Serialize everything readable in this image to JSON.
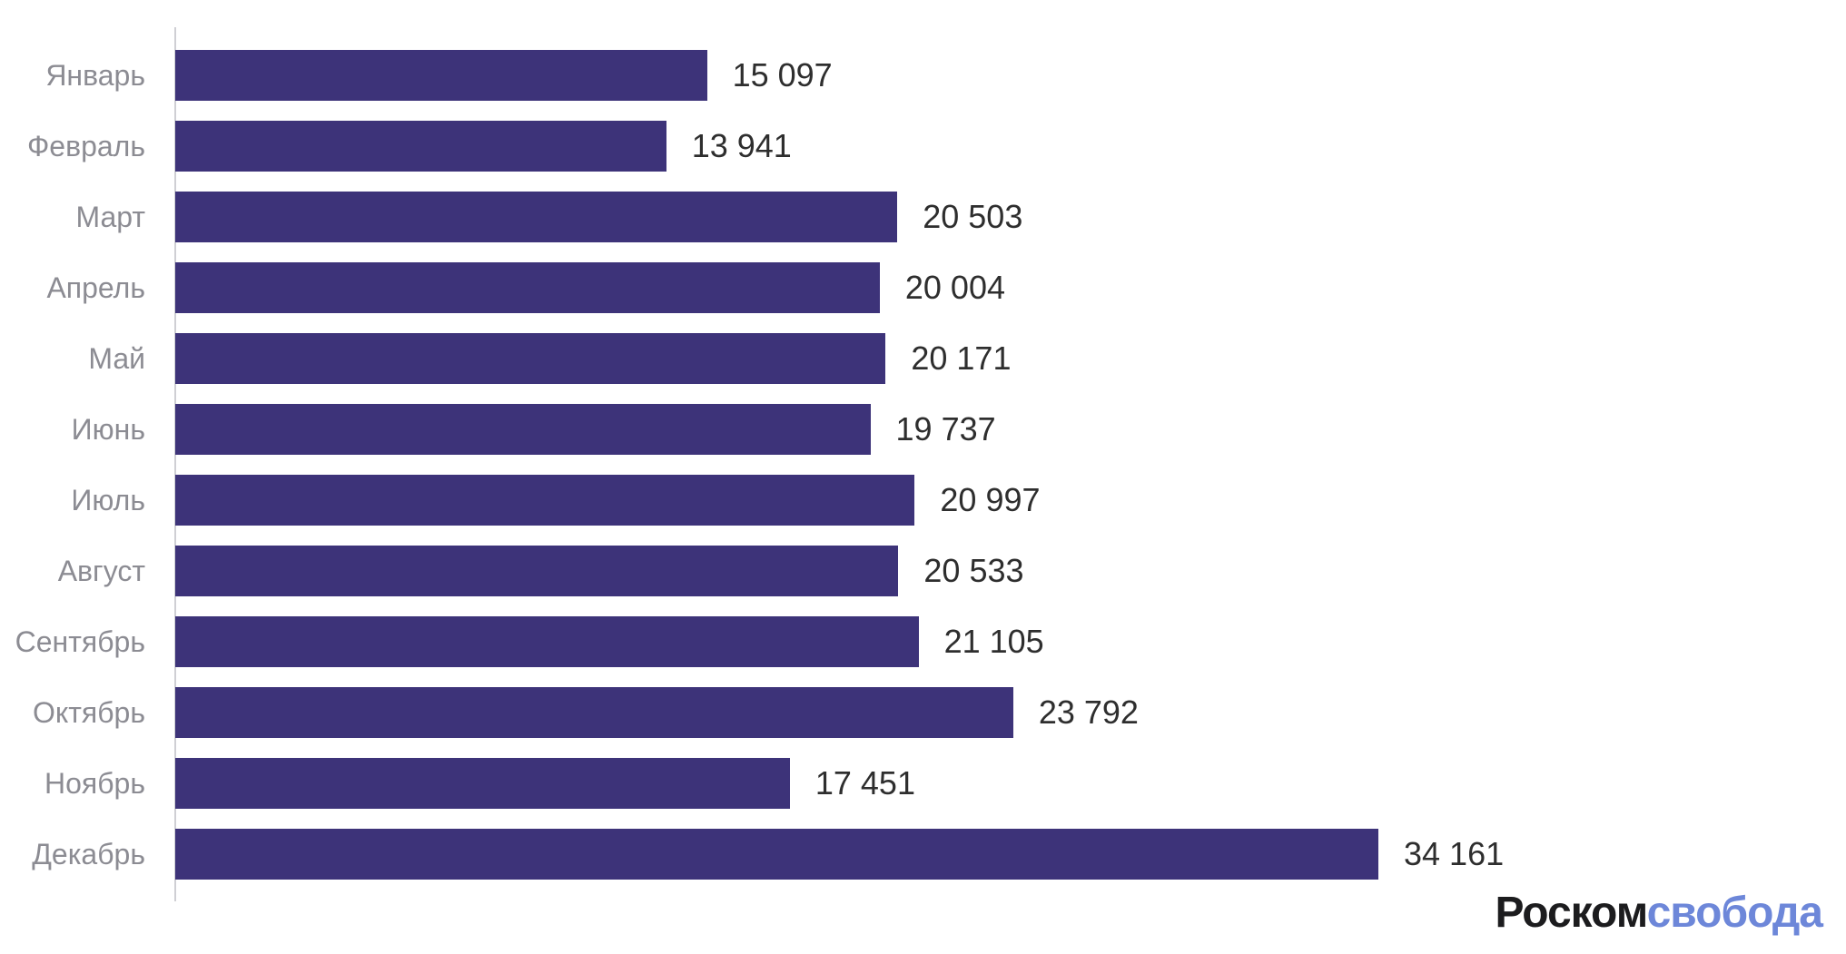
{
  "chart_data": {
    "type": "bar",
    "orientation": "horizontal",
    "categories": [
      "Январь",
      "Февраль",
      "Март",
      "Апрель",
      "Май",
      "Июнь",
      "Июль",
      "Август",
      "Сентябрь",
      "Октябрь",
      "Ноябрь",
      "Декабрь"
    ],
    "values": [
      15097,
      13941,
      20503,
      20004,
      20171,
      19737,
      20997,
      20533,
      21105,
      23792,
      17451,
      34161
    ],
    "value_labels": [
      "15 097",
      "13 941",
      "20 503",
      "20 004",
      "20 171",
      "19 737",
      "20 997",
      "20 533",
      "21 105",
      "23 792",
      "17 451",
      "34 161"
    ],
    "xlim": [
      0,
      34161
    ],
    "bar_color": "#3d3379",
    "category_label_color": "#8c8c93",
    "value_label_color": "#2e2e2e",
    "axis_color": "#cfcfd4",
    "grid": false,
    "legend_position": "none",
    "title": "",
    "xlabel": "",
    "ylabel": ""
  },
  "branding": {
    "logo_black": "Роском",
    "logo_blue": "свобода",
    "logo_black_color": "#1c1c1e",
    "logo_blue_color": "#6d87d9"
  }
}
